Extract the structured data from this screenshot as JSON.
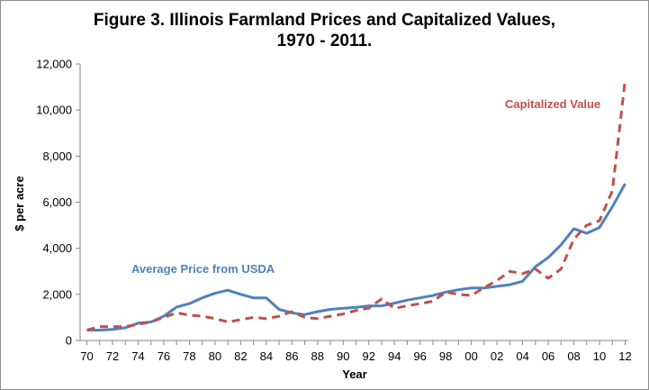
{
  "chart_data": {
    "type": "line",
    "title": "Figure 3.  Illinois Farmland Prices and Capitalized Values,",
    "subtitle": "1970 - 2011.",
    "xlabel": "Year",
    "ylabel": "$ per acre",
    "x_ticks": [
      "70",
      "72",
      "74",
      "76",
      "78",
      "80",
      "82",
      "84",
      "86",
      "88",
      "90",
      "92",
      "94",
      "96",
      "98",
      "00",
      "02",
      "04",
      "06",
      "08",
      "10",
      "12"
    ],
    "y_ticks": [
      "0",
      "2,000",
      "4,000",
      "6,000",
      "8,000",
      "10,000",
      "12,000"
    ],
    "ylim": [
      0,
      12000
    ],
    "grid": false,
    "x": [
      1970,
      1971,
      1972,
      1973,
      1974,
      1975,
      1976,
      1977,
      1978,
      1979,
      1980,
      1981,
      1982,
      1983,
      1984,
      1985,
      1986,
      1987,
      1988,
      1989,
      1990,
      1991,
      1992,
      1993,
      1994,
      1995,
      1996,
      1997,
      1998,
      1999,
      2000,
      2001,
      2002,
      2003,
      2004,
      2005,
      2006,
      2007,
      2008,
      2009,
      2010,
      2011,
      2012
    ],
    "series": [
      {
        "name": "Average Price from USDA",
        "color": "#4f81bd",
        "style": "solid",
        "values": [
          450,
          450,
          480,
          550,
          750,
          800,
          1050,
          1450,
          1600,
          1850,
          2050,
          2180,
          2000,
          1850,
          1850,
          1350,
          1200,
          1120,
          1250,
          1350,
          1400,
          1440,
          1500,
          1500,
          1620,
          1750,
          1850,
          1950,
          2100,
          2200,
          2280,
          2280,
          2350,
          2420,
          2570,
          3200,
          3600,
          4150,
          4850,
          4650,
          4900,
          5800,
          6800
        ]
      },
      {
        "name": "Capitalized Value",
        "color": "#c0504d",
        "style": "dashed",
        "values": [
          450,
          600,
          600,
          600,
          700,
          800,
          1000,
          1200,
          1100,
          1050,
          950,
          800,
          900,
          1000,
          950,
          1050,
          1250,
          1000,
          950,
          1050,
          1150,
          1300,
          1400,
          1800,
          1400,
          1500,
          1600,
          1700,
          2100,
          2000,
          1950,
          2300,
          2600,
          3000,
          2900,
          3100,
          2700,
          3100,
          4400,
          5000,
          5200,
          6500,
          11300
        ]
      }
    ]
  }
}
